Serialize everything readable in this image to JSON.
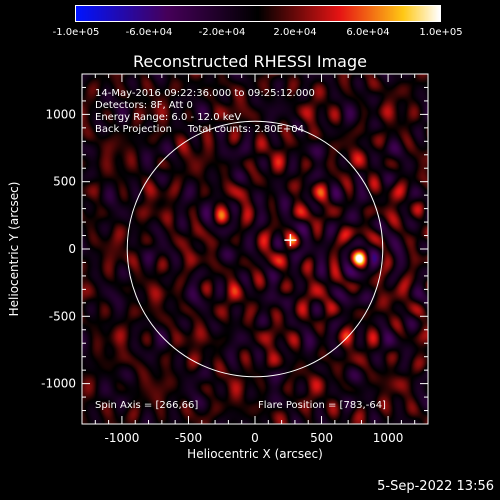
{
  "colorbar": {
    "ticks": [
      "-1.0e+05",
      "-6.0e+04",
      "-2.0e+04",
      "2.0e+04",
      "6.0e+04",
      "1.0e+05"
    ],
    "min": -100000,
    "max": 100000
  },
  "info": {
    "line1": "14-May-2016 09:22:36.000 to 09:25:12.000",
    "line2": "Detectors: 8F, Att 0",
    "line3": "Energy Range: 6.0 - 12.0 keV",
    "line4": "Back Projection     Total counts: 2.80E+04",
    "spin_axis": "Spin Axis = [266,66]",
    "flare_position": "Flare Position = [783,-64]"
  },
  "date_stamp": "5-Sep-2022 13:56",
  "chart_data": {
    "type": "heatmap",
    "title": "Reconstructed RHESSI Image",
    "xlabel": "Heliocentric X (arcsec)",
    "ylabel": "Heliocentric Y (arcsec)",
    "xlim": [
      -1300,
      1300
    ],
    "ylim": [
      -1300,
      1300
    ],
    "xticks": [
      -1000,
      -500,
      0,
      500,
      1000
    ],
    "yticks": [
      -1000,
      -500,
      0,
      500,
      1000
    ],
    "xtick_labels": [
      "-1000",
      "-500",
      "0",
      "500",
      "1000"
    ],
    "ytick_labels": [
      "1000",
      "500",
      "0",
      "-500",
      "-1000"
    ],
    "solar_limb_radius": 960,
    "sources": [
      {
        "x": 783,
        "y": -64,
        "intensity": 1.0
      },
      {
        "x": 285,
        "y": 60,
        "intensity": 0.6
      },
      {
        "x": -250,
        "y": 220,
        "intensity": 0.45
      }
    ],
    "marker": {
      "x": 266,
      "y": 66
    },
    "colormap": "blue-black-red-yellow-white"
  },
  "colors": {
    "background": "#000000",
    "limb": "#ffffff",
    "axes": "#ffffff"
  }
}
